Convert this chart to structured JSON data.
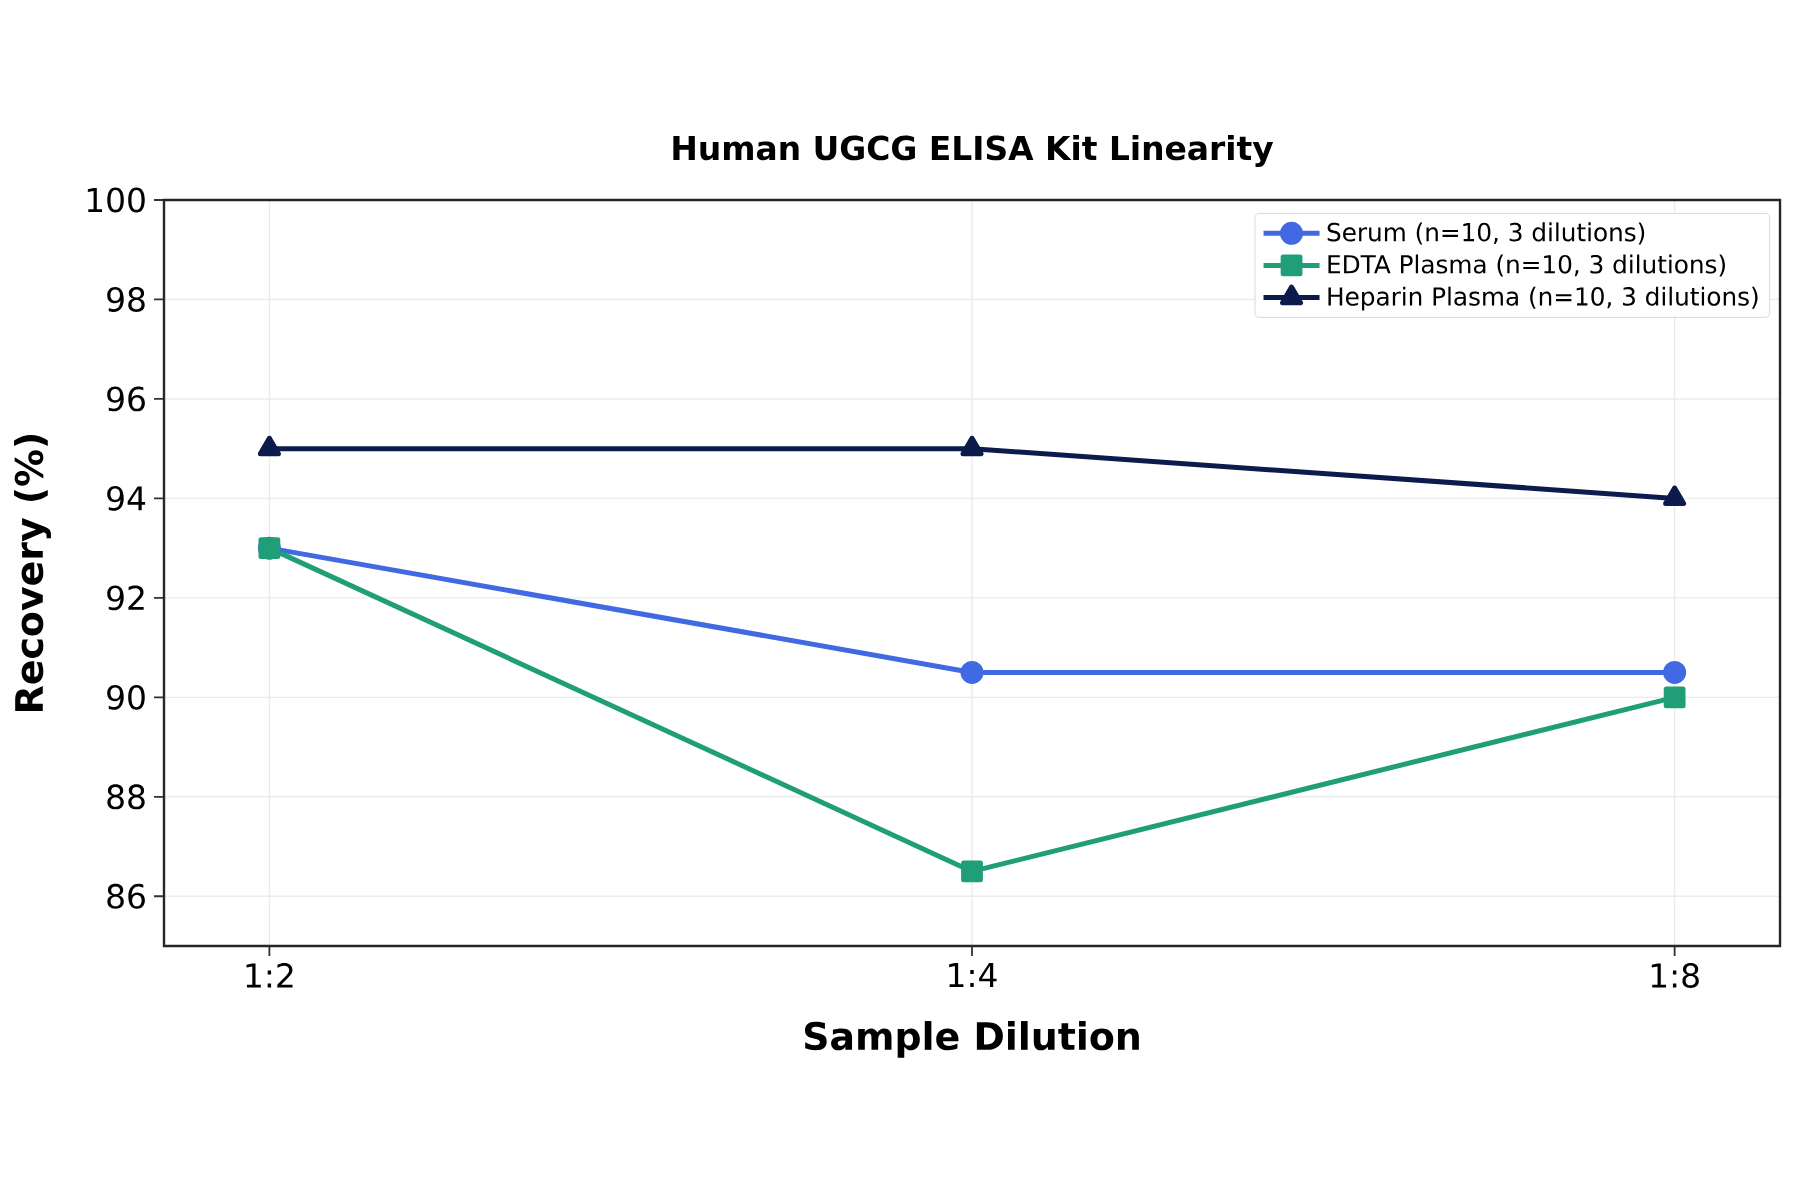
{
  "chart_data": {
    "type": "line",
    "title": "Human UGCG ELISA Kit Linearity",
    "xlabel": "Sample Dilution",
    "ylabel": "Recovery (%)",
    "categories": [
      "1:2",
      "1:4",
      "1:8"
    ],
    "series": [
      {
        "name": "Serum (n=10, 3 dilutions)",
        "color": "#4169e1",
        "marker": "circle",
        "values": [
          93,
          90.5,
          90.5
        ]
      },
      {
        "name": "EDTA Plasma (n=10, 3 dilutions)",
        "color": "#1f9e77",
        "marker": "square",
        "values": [
          93,
          86.5,
          90
        ]
      },
      {
        "name": "Heparin Plasma (n=10, 3 dilutions)",
        "color": "#0d1b4c",
        "marker": "triangle",
        "values": [
          95,
          95,
          94
        ]
      }
    ],
    "ylim": [
      85,
      100
    ],
    "yticks": [
      86,
      88,
      90,
      92,
      94,
      96,
      98,
      100
    ],
    "grid": true,
    "legend": "top right",
    "line_style": "solid"
  }
}
